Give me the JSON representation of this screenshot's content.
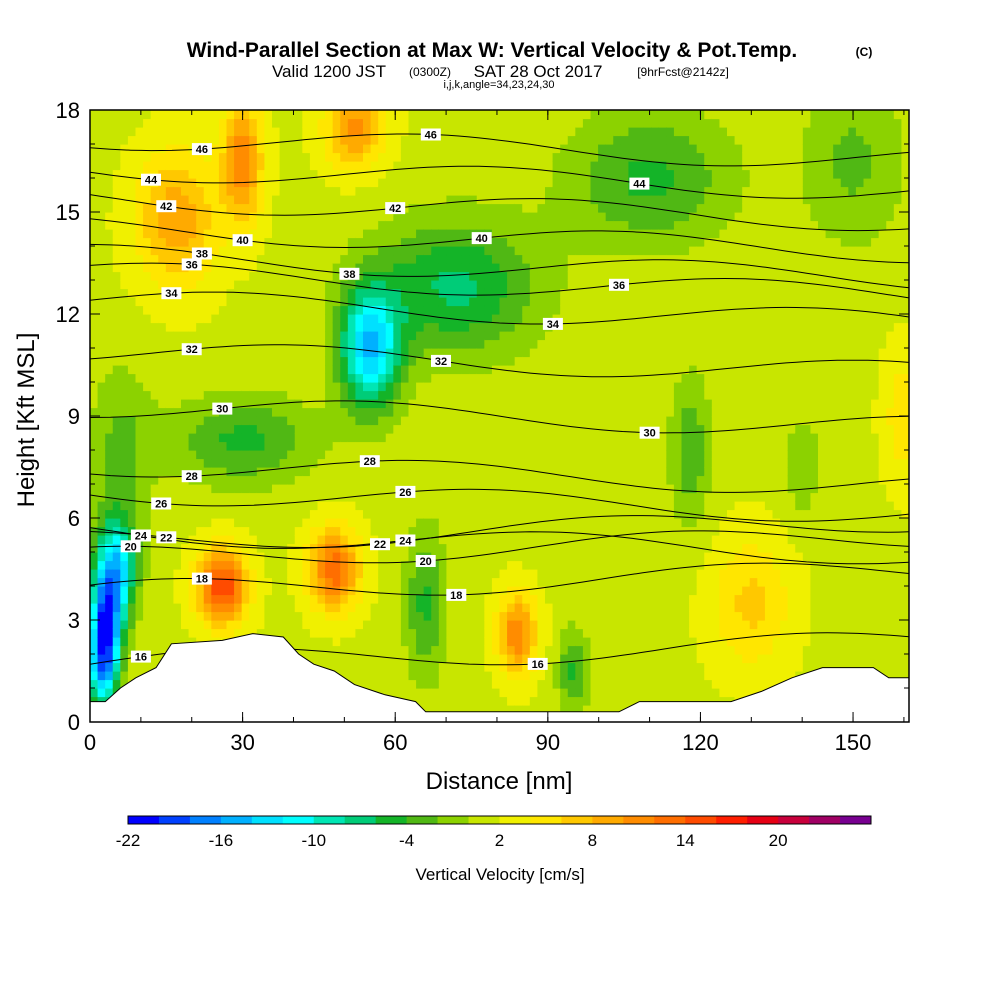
{
  "title": {
    "main": "Wind-Parallel Section at Max W: Vertical Velocity & Pot.Temp.",
    "main_unit": "(C)",
    "sub_a": "Valid 1200 JST",
    "sub_b": "(0300Z)",
    "sub_c": "SAT 28 Oct 2017",
    "sub_d": "[9hrFcst@2142z]",
    "sub_e": "i,j,k,angle=34,23,24,30"
  },
  "chart_data": {
    "type": "heatmap",
    "xlabel": "Distance [nm]",
    "ylabel": "Height [Kft MSL]",
    "xlim": [
      0,
      161
    ],
    "ylim": [
      0,
      18
    ],
    "x_ticks": [
      0,
      30,
      60,
      90,
      120,
      150
    ],
    "y_ticks": [
      0,
      3,
      6,
      9,
      12,
      15,
      18
    ],
    "colorbar": {
      "label": "Vertical Velocity [cm/s]",
      "tick_labels": [
        "-22",
        "-16",
        "-10",
        "-4",
        "2",
        "8",
        "14",
        "20"
      ],
      "tick_values": [
        -22,
        -16,
        -10,
        -4,
        2,
        8,
        14,
        20
      ],
      "range": [
        -22,
        26
      ],
      "colors": [
        "#0000ff",
        "#0040ff",
        "#0080ff",
        "#00b0ff",
        "#00e0ff",
        "#00ffff",
        "#00e6b4",
        "#00cc78",
        "#14b428",
        "#50b814",
        "#8cd200",
        "#c8e600",
        "#f0f000",
        "#ffe600",
        "#ffc800",
        "#ffaa00",
        "#ff8c00",
        "#ff6e00",
        "#ff4b00",
        "#ff1e00",
        "#e60014",
        "#c8003c",
        "#a00064",
        "#780090"
      ]
    },
    "isentropes": {
      "variable": "Potential temperature",
      "unit": "C",
      "values": [
        16,
        18,
        20,
        22,
        24,
        26,
        28,
        30,
        32,
        34,
        36,
        38,
        40,
        42,
        44,
        46
      ],
      "base_height": [
        1.7,
        3.8,
        4.8,
        5.3,
        5.6,
        6.8,
        7.6,
        9.3,
        10.9,
        12.4,
        13.2,
        13.7,
        14.5,
        15.4,
        16.3,
        17.2
      ]
    },
    "cells": [
      {
        "x": 3,
        "y": 2.6,
        "w": -21,
        "sx": 3,
        "sy": 1.5
      },
      {
        "x": 5,
        "y": 4.5,
        "w": -15,
        "sx": 4,
        "sy": 1.5
      },
      {
        "x": 2,
        "y": 1.2,
        "w": -8,
        "sx": 3,
        "sy": 1
      },
      {
        "x": 26,
        "y": 4.0,
        "w": 14,
        "sx": 5,
        "sy": 1.1
      },
      {
        "x": 48,
        "y": 4.5,
        "w": 12,
        "sx": 5,
        "sy": 1.2
      },
      {
        "x": 84,
        "y": 2.6,
        "w": 10,
        "sx": 4,
        "sy": 1.2
      },
      {
        "x": 55,
        "y": 11.0,
        "w": -15,
        "sx": 6,
        "sy": 1.8
      },
      {
        "x": 72,
        "y": 12.8,
        "w": -8,
        "sx": 16,
        "sy": 2
      },
      {
        "x": 110,
        "y": 16.0,
        "w": -6,
        "sx": 16,
        "sy": 2
      },
      {
        "x": 66,
        "y": 3.5,
        "w": -6,
        "sx": 4,
        "sy": 2.2
      },
      {
        "x": 95,
        "y": 1.5,
        "w": -6,
        "sx": 3,
        "sy": 1.2
      },
      {
        "x": 118,
        "y": 8.0,
        "w": -5,
        "sx": 4,
        "sy": 2.2
      },
      {
        "x": 30,
        "y": 8.3,
        "w": -6,
        "sx": 14,
        "sy": 1.3
      },
      {
        "x": 6,
        "y": 8.0,
        "w": -4,
        "sx": 6,
        "sy": 2.5
      },
      {
        "x": 17,
        "y": 14.8,
        "w": 8,
        "sx": 8,
        "sy": 2
      },
      {
        "x": 30,
        "y": 16.5,
        "w": 10,
        "sx": 4,
        "sy": 1.8
      },
      {
        "x": 52,
        "y": 17.5,
        "w": 9,
        "sx": 6,
        "sy": 1.2
      },
      {
        "x": 150,
        "y": 16.5,
        "w": -4,
        "sx": 10,
        "sy": 2.5
      },
      {
        "x": 130,
        "y": 3.5,
        "w": 5,
        "sx": 8,
        "sy": 2
      },
      {
        "x": 160,
        "y": 9.0,
        "w": 4,
        "sx": 4,
        "sy": 2
      },
      {
        "x": 140,
        "y": 7.5,
        "w": -3,
        "sx": 4,
        "sy": 1.5
      }
    ],
    "terrain": [
      [
        0,
        0.6
      ],
      [
        3,
        0.6
      ],
      [
        6,
        1.0
      ],
      [
        9,
        1.3
      ],
      [
        13,
        1.6
      ],
      [
        16,
        2.3
      ],
      [
        26,
        2.4
      ],
      [
        32,
        2.6
      ],
      [
        38,
        2.5
      ],
      [
        41,
        2.0
      ],
      [
        44,
        1.7
      ],
      [
        48,
        1.5
      ],
      [
        52,
        1.1
      ],
      [
        58,
        0.8
      ],
      [
        64,
        0.6
      ],
      [
        66,
        0.3
      ],
      [
        84,
        0.3
      ],
      [
        90,
        0.3
      ],
      [
        104,
        0.3
      ],
      [
        108,
        0.6
      ],
      [
        126,
        0.6
      ],
      [
        132,
        0.9
      ],
      [
        138,
        1.3
      ],
      [
        144,
        1.6
      ],
      [
        154,
        1.6
      ],
      [
        157,
        1.3
      ],
      [
        161,
        1.3
      ]
    ]
  }
}
